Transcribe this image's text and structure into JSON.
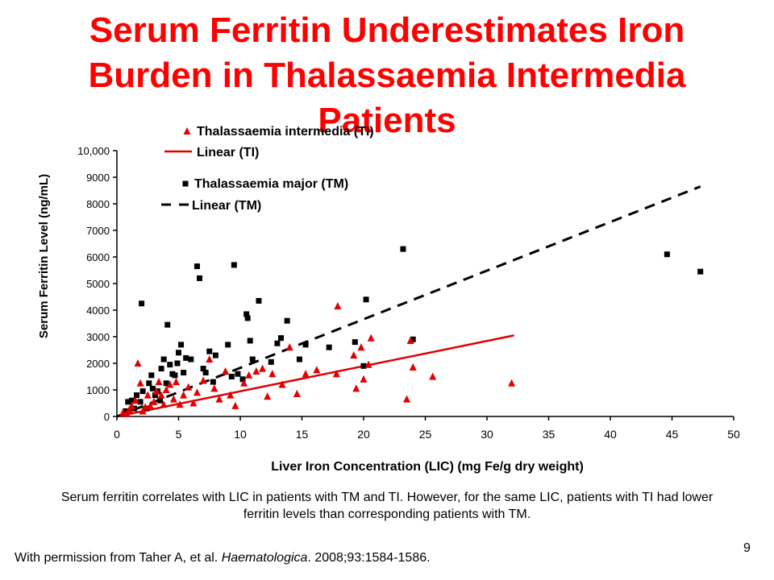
{
  "slide": {
    "title": "Serum Ferritin Underestimates Iron Burden in Thalassaemia Intermedia Patients",
    "caption": "Serum ferritin correlates with LIC in patients with TM and TI. However, for the same LIC, patients with TI had lower ferritin levels than corresponding patients with TM.",
    "permission_prefix": "With permission from Taher A, et al. ",
    "permission_journal": "Haematologica",
    "permission_suffix": ". 2008;93:1584-1586.",
    "page_number": "9"
  },
  "chart_data": {
    "type": "scatter",
    "title": "",
    "xlabel": "Liver Iron Concentration (LIC) (mg Fe/g dry weight)",
    "ylabel": "Serum Ferritin Level (ng/mL)",
    "xlim": [
      0,
      50
    ],
    "ylim": [
      0,
      10000
    ],
    "x_ticks": [
      0,
      5,
      10,
      15,
      20,
      25,
      30,
      35,
      40,
      45,
      50
    ],
    "x_tick_labels": [
      "0",
      "5",
      "10",
      "15",
      "20",
      "25",
      "30",
      "35",
      "40",
      "45",
      "50"
    ],
    "y_ticks": [
      0,
      1000,
      2000,
      3000,
      4000,
      5000,
      6000,
      7000,
      8000,
      9000,
      10000
    ],
    "y_tick_labels": [
      "0",
      "1000",
      "2000",
      "3000",
      "4000",
      "5000",
      "6000",
      "7000",
      "8000",
      "9000",
      "10,000"
    ],
    "grid": false,
    "legend_position": "top-left",
    "legend": [
      {
        "label": "Thalassaemia intermedia (TI)",
        "kind": "marker",
        "marker": "triangle",
        "color": "#e00000"
      },
      {
        "label": "Linear (TI)",
        "kind": "line",
        "dash": "solid",
        "color": "#e00000"
      },
      {
        "label": "Thalassaemia major (TM)",
        "kind": "marker",
        "marker": "square",
        "color": "#000000"
      },
      {
        "label": "Linear (TM)",
        "kind": "line",
        "dash": "dashed",
        "color": "#000000"
      }
    ],
    "series": [
      {
        "name": "Thalassaemia major (TM)",
        "marker": "square",
        "color": "#000000",
        "points": [
          [
            0.7,
            200
          ],
          [
            0.9,
            550
          ],
          [
            1.2,
            600
          ],
          [
            1.4,
            300
          ],
          [
            1.6,
            800
          ],
          [
            1.9,
            550
          ],
          [
            2.0,
            4250
          ],
          [
            2.1,
            950
          ],
          [
            2.4,
            300
          ],
          [
            2.6,
            1250
          ],
          [
            2.8,
            1550
          ],
          [
            2.9,
            1050
          ],
          [
            3.1,
            800
          ],
          [
            3.3,
            950
          ],
          [
            3.5,
            600
          ],
          [
            3.6,
            1800
          ],
          [
            3.8,
            2150
          ],
          [
            4.0,
            1250
          ],
          [
            4.1,
            3450
          ],
          [
            4.3,
            1950
          ],
          [
            4.5,
            1600
          ],
          [
            4.7,
            1550
          ],
          [
            4.9,
            2000
          ],
          [
            5.0,
            2400
          ],
          [
            5.2,
            2700
          ],
          [
            5.4,
            1650
          ],
          [
            5.6,
            2200
          ],
          [
            6.0,
            2150
          ],
          [
            6.5,
            5650
          ],
          [
            6.7,
            5200
          ],
          [
            7.0,
            1800
          ],
          [
            7.2,
            1650
          ],
          [
            7.5,
            2450
          ],
          [
            7.8,
            1300
          ],
          [
            8.0,
            2300
          ],
          [
            9.0,
            2700
          ],
          [
            9.3,
            1500
          ],
          [
            9.5,
            5700
          ],
          [
            9.8,
            1600
          ],
          [
            10.2,
            1400
          ],
          [
            10.5,
            3850
          ],
          [
            10.6,
            3700
          ],
          [
            10.8,
            2850
          ],
          [
            11.0,
            2150
          ],
          [
            11.5,
            4350
          ],
          [
            12.5,
            2050
          ],
          [
            13.0,
            2750
          ],
          [
            13.3,
            2950
          ],
          [
            13.8,
            3600
          ],
          [
            14.8,
            2150
          ],
          [
            15.3,
            2700
          ],
          [
            17.2,
            2600
          ],
          [
            19.3,
            2800
          ],
          [
            20.0,
            1900
          ],
          [
            20.2,
            4400
          ],
          [
            23.2,
            6300
          ],
          [
            24.0,
            2900
          ],
          [
            44.6,
            6100
          ],
          [
            47.3,
            5450
          ]
        ]
      },
      {
        "name": "Thalassaemia intermedia (TI)",
        "marker": "triangle",
        "color": "#e00000",
        "points": [
          [
            0.5,
            150
          ],
          [
            0.8,
            100
          ],
          [
            1.0,
            250
          ],
          [
            1.2,
            400
          ],
          [
            1.5,
            600
          ],
          [
            1.7,
            2000
          ],
          [
            1.9,
            1250
          ],
          [
            2.1,
            200
          ],
          [
            2.3,
            350
          ],
          [
            2.5,
            800
          ],
          [
            2.7,
            400
          ],
          [
            3.0,
            550
          ],
          [
            3.2,
            950
          ],
          [
            3.4,
            1300
          ],
          [
            3.6,
            800
          ],
          [
            3.8,
            450
          ],
          [
            4.0,
            1000
          ],
          [
            4.3,
            1200
          ],
          [
            4.6,
            650
          ],
          [
            4.8,
            1300
          ],
          [
            5.1,
            450
          ],
          [
            5.4,
            800
          ],
          [
            5.8,
            1100
          ],
          [
            6.2,
            500
          ],
          [
            6.5,
            900
          ],
          [
            7.0,
            1350
          ],
          [
            7.5,
            2150
          ],
          [
            7.9,
            1050
          ],
          [
            8.3,
            650
          ],
          [
            8.8,
            1700
          ],
          [
            9.2,
            800
          ],
          [
            9.6,
            400
          ],
          [
            10.3,
            1250
          ],
          [
            10.7,
            1550
          ],
          [
            11.3,
            1700
          ],
          [
            11.8,
            1800
          ],
          [
            12.2,
            750
          ],
          [
            12.6,
            1600
          ],
          [
            13.4,
            1200
          ],
          [
            14.0,
            2600
          ],
          [
            14.6,
            850
          ],
          [
            15.3,
            1600
          ],
          [
            16.2,
            1750
          ],
          [
            17.8,
            1600
          ],
          [
            17.9,
            4150
          ],
          [
            19.2,
            2300
          ],
          [
            19.4,
            1050
          ],
          [
            19.8,
            2600
          ],
          [
            20.0,
            1400
          ],
          [
            20.4,
            1950
          ],
          [
            20.6,
            2950
          ],
          [
            23.5,
            650
          ],
          [
            23.8,
            2850
          ],
          [
            24.0,
            1850
          ],
          [
            25.6,
            1500
          ],
          [
            32.0,
            1250
          ]
        ]
      }
    ],
    "trendlines": [
      {
        "name": "Linear (TI)",
        "dash": "solid",
        "color": "#e00000",
        "x": [
          0,
          32.2
        ],
        "y": [
          0,
          3050
        ]
      },
      {
        "name": "Linear (TM)",
        "dash": "dashed",
        "color": "#000000",
        "x": [
          0,
          47.3
        ],
        "y": [
          0,
          8650
        ]
      }
    ]
  }
}
